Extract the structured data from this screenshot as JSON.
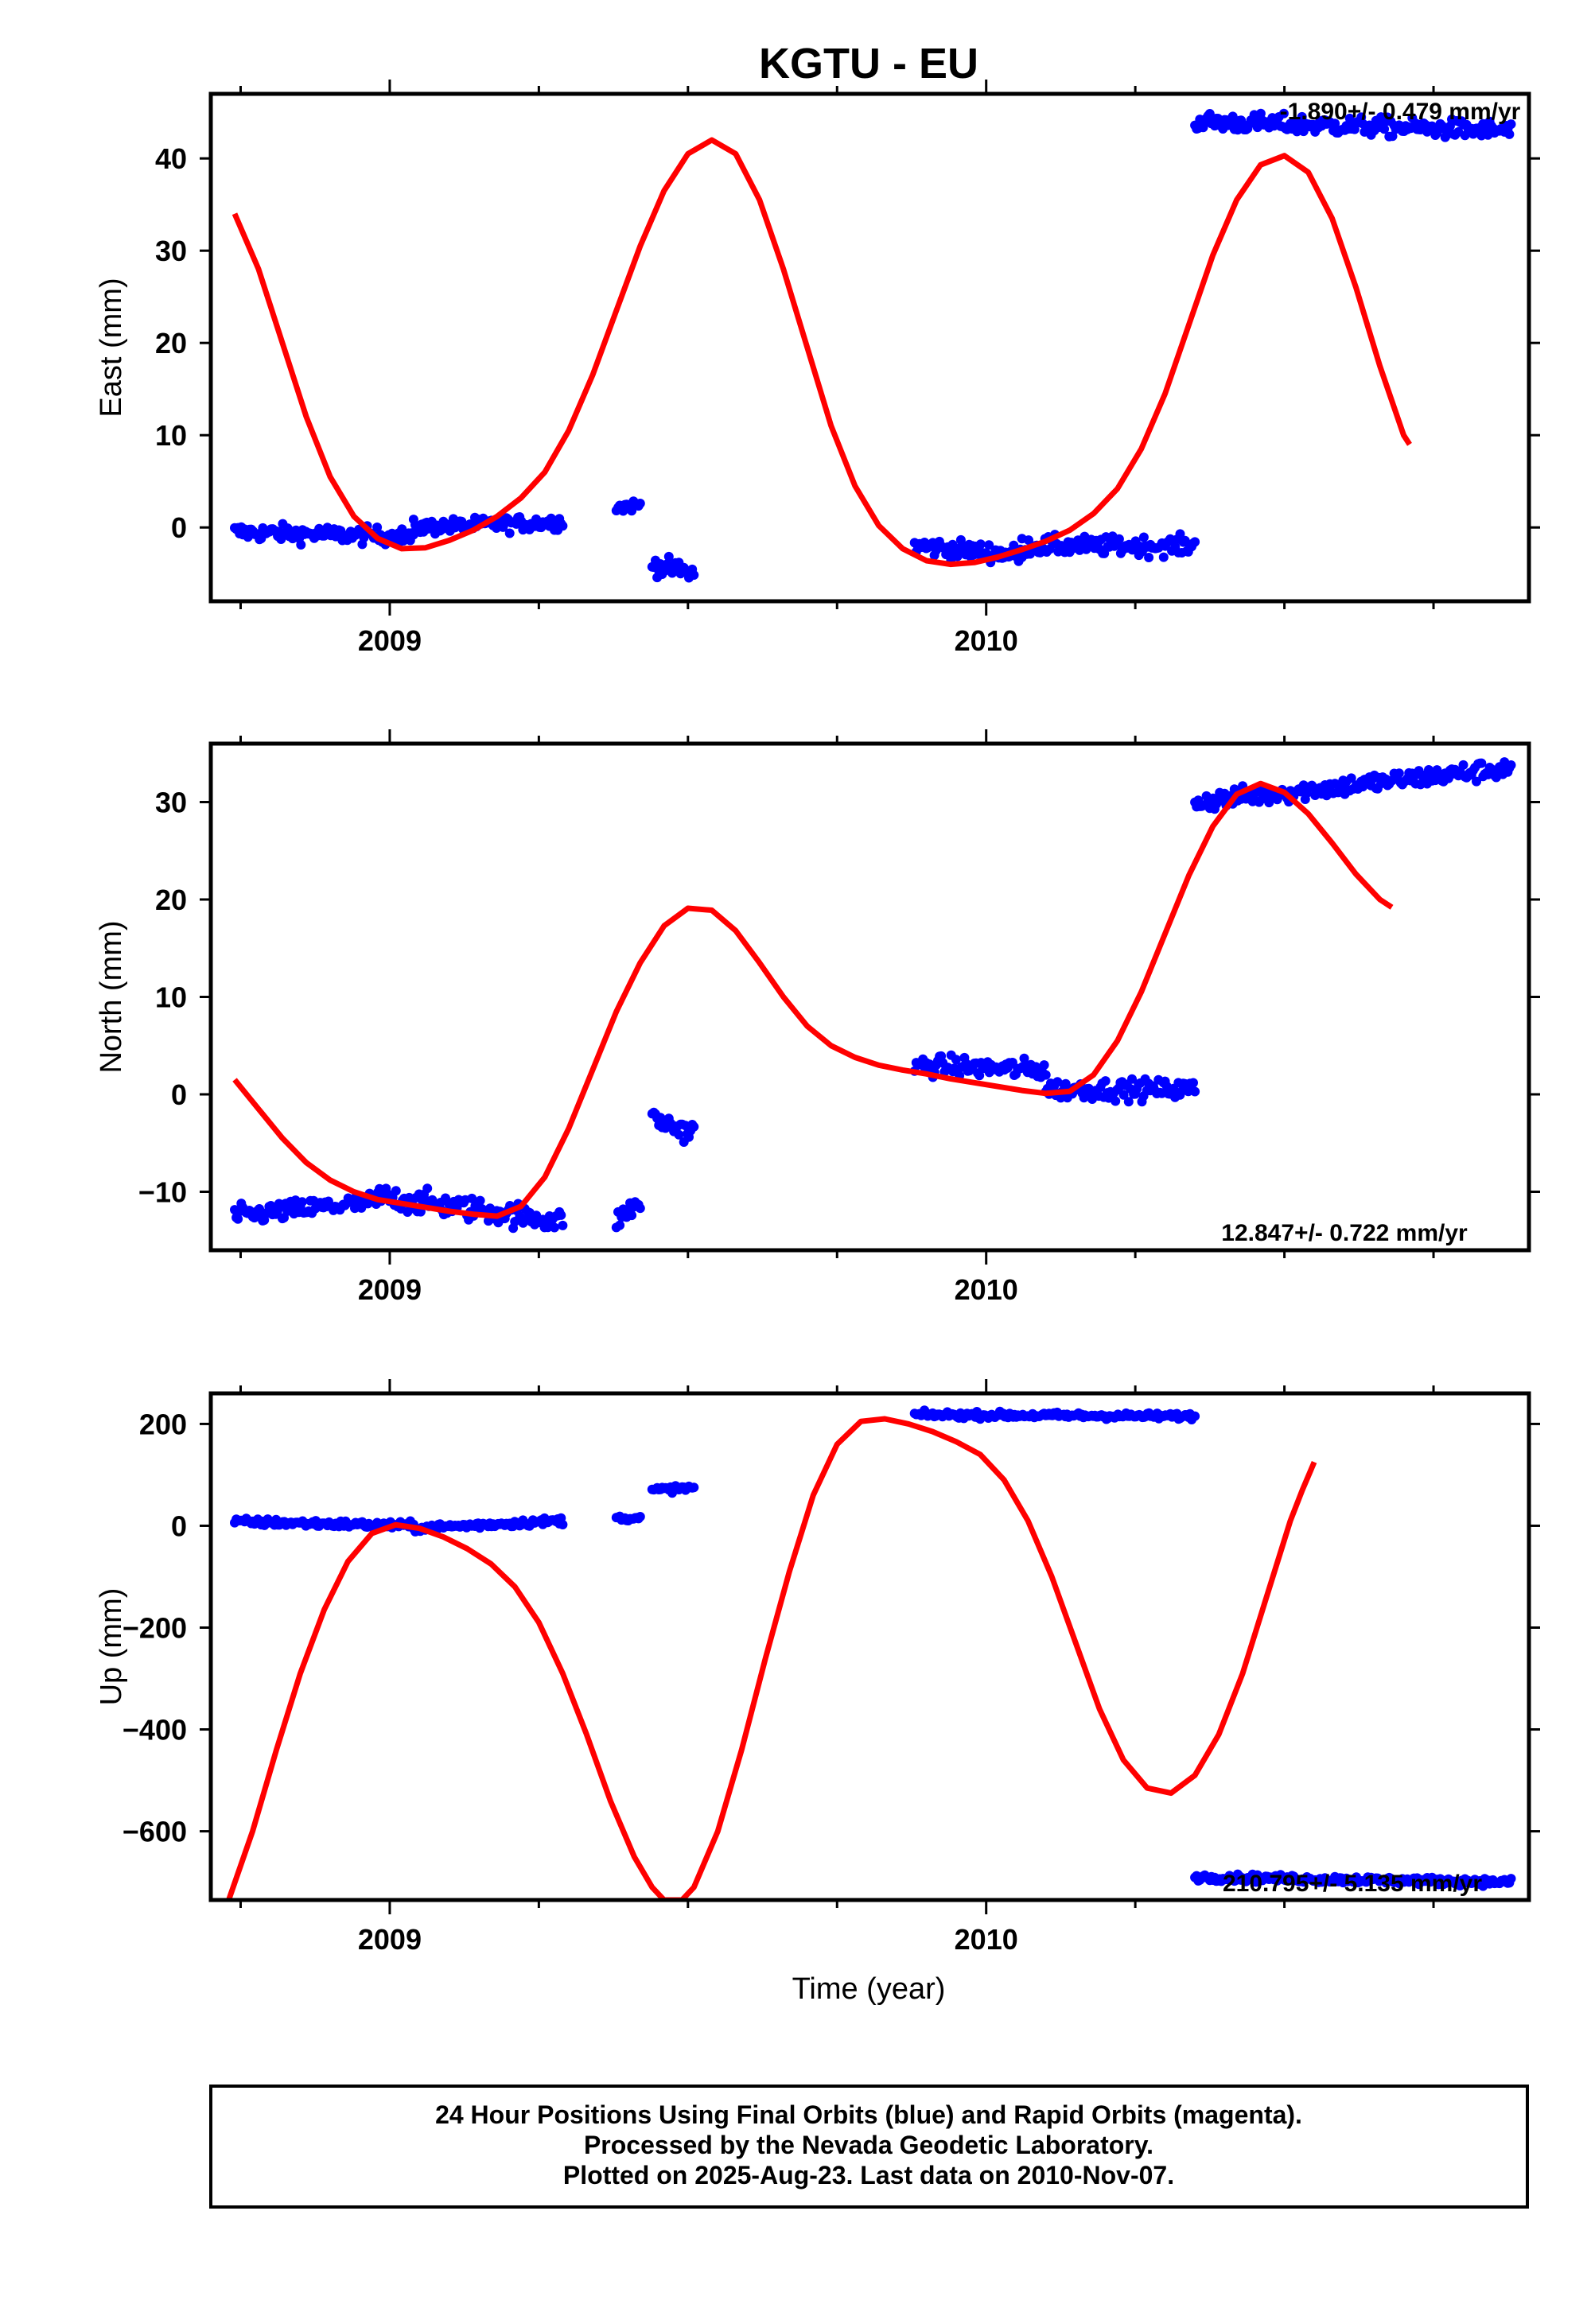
{
  "title": "KGTU - EU",
  "xlabel": "Time (year)",
  "caption": {
    "lines": [
      "24 Hour Positions Using Final Orbits (blue) and Rapid Orbits (magenta).",
      "Processed by the Nevada Geodetic Laboratory.",
      "Plotted on 2025-Aug-23. Last data on 2010-Nov-07."
    ]
  },
  "colors": {
    "data": "#0000ff",
    "fit": "#ff0000",
    "frame": "#000000"
  },
  "chart_data": [
    {
      "type": "scatter",
      "name": "east",
      "ylabel": "East (mm)",
      "rate_label": "-1.890+/- 0.479 mm/yr",
      "xlim": [
        2008.7,
        2010.91
      ],
      "ylim": [
        -8,
        47
      ],
      "xticks": [
        2009,
        2010
      ],
      "yticks": [
        0,
        10,
        20,
        30,
        40
      ],
      "ytick_labels": [
        "0",
        "10",
        "20",
        "30",
        "40"
      ],
      "data_segments": [
        {
          "x0": 2008.74,
          "x1": 2009.04,
          "y0": -0.5,
          "y1": -1.0,
          "noise": 0.9
        },
        {
          "x0": 2009.04,
          "x1": 2009.29,
          "y0": 0.0,
          "y1": 0.6,
          "noise": 0.8
        },
        {
          "x0": 2009.38,
          "x1": 2009.42,
          "y0": 2.2,
          "y1": 2.4,
          "noise": 0.6
        },
        {
          "x0": 2009.44,
          "x1": 2009.51,
          "y0": -4.0,
          "y1": -5.0,
          "noise": 1.0
        },
        {
          "x0": 2009.88,
          "x1": 2010.06,
          "y0": -2.0,
          "y1": -3.0,
          "noise": 1.0
        },
        {
          "x0": 2010.06,
          "x1": 2010.35,
          "y0": -2.0,
          "y1": -2.0,
          "noise": 1.0
        },
        {
          "x0": 2010.35,
          "x1": 2010.88,
          "y0": 44.0,
          "y1": 43.0,
          "noise": 1.0
        }
      ],
      "fit_points": [
        [
          2008.74,
          34
        ],
        [
          2008.78,
          28
        ],
        [
          2008.82,
          20
        ],
        [
          2008.86,
          12
        ],
        [
          2008.9,
          5.5
        ],
        [
          2008.94,
          1.2
        ],
        [
          2008.98,
          -1.2
        ],
        [
          2009.02,
          -2.3
        ],
        [
          2009.06,
          -2.2
        ],
        [
          2009.1,
          -1.4
        ],
        [
          2009.14,
          -0.3
        ],
        [
          2009.18,
          1.2
        ],
        [
          2009.22,
          3.2
        ],
        [
          2009.26,
          6.0
        ],
        [
          2009.3,
          10.5
        ],
        [
          2009.34,
          16.5
        ],
        [
          2009.38,
          23.5
        ],
        [
          2009.42,
          30.5
        ],
        [
          2009.46,
          36.5
        ],
        [
          2009.5,
          40.5
        ],
        [
          2009.54,
          42.0
        ],
        [
          2009.58,
          40.5
        ],
        [
          2009.62,
          35.5
        ],
        [
          2009.66,
          28.0
        ],
        [
          2009.7,
          19.5
        ],
        [
          2009.74,
          11.0
        ],
        [
          2009.78,
          4.5
        ],
        [
          2009.82,
          0.2
        ],
        [
          2009.86,
          -2.3
        ],
        [
          2009.9,
          -3.6
        ],
        [
          2009.94,
          -4.0
        ],
        [
          2009.98,
          -3.8
        ],
        [
          2010.02,
          -3.2
        ],
        [
          2010.06,
          -2.4
        ],
        [
          2010.1,
          -1.5
        ],
        [
          2010.14,
          -0.3
        ],
        [
          2010.18,
          1.5
        ],
        [
          2010.22,
          4.2
        ],
        [
          2010.26,
          8.5
        ],
        [
          2010.3,
          14.5
        ],
        [
          2010.34,
          22.0
        ],
        [
          2010.38,
          29.5
        ],
        [
          2010.42,
          35.5
        ],
        [
          2010.46,
          39.3
        ],
        [
          2010.5,
          40.3
        ],
        [
          2010.54,
          38.5
        ],
        [
          2010.58,
          33.5
        ],
        [
          2010.62,
          26.0
        ],
        [
          2010.66,
          17.5
        ],
        [
          2010.7,
          10.0
        ],
        [
          2010.71,
          9.0
        ]
      ]
    },
    {
      "type": "scatter",
      "name": "north",
      "ylabel": "North (mm)",
      "rate_label": "12.847+/- 0.722 mm/yr",
      "xlim": [
        2008.7,
        2010.91
      ],
      "ylim": [
        -16,
        36
      ],
      "xticks": [
        2009,
        2010
      ],
      "yticks": [
        -10,
        0,
        10,
        20,
        30
      ],
      "ytick_labels": [
        "−10",
        "0",
        "10",
        "20",
        "30"
      ],
      "data_segments": [
        {
          "x0": 2008.74,
          "x1": 2008.98,
          "y0": -12.5,
          "y1": -11.0,
          "noise": 1.0
        },
        {
          "x0": 2008.98,
          "x1": 2009.29,
          "y0": -10.5,
          "y1": -13.0,
          "noise": 1.2
        },
        {
          "x0": 2009.38,
          "x1": 2009.42,
          "y0": -13.0,
          "y1": -11.0,
          "noise": 1.0
        },
        {
          "x0": 2009.44,
          "x1": 2009.51,
          "y0": -2.5,
          "y1": -4.0,
          "noise": 1.2
        },
        {
          "x0": 2009.88,
          "x1": 2010.1,
          "y0": 3.0,
          "y1": 2.5,
          "noise": 1.0
        },
        {
          "x0": 2010.1,
          "x1": 2010.35,
          "y0": 0.5,
          "y1": 0.5,
          "noise": 1.0
        },
        {
          "x0": 2010.35,
          "x1": 2010.88,
          "y0": 30.0,
          "y1": 33.5,
          "noise": 1.0
        }
      ],
      "fit_points": [
        [
          2008.74,
          1.5
        ],
        [
          2008.78,
          -1.5
        ],
        [
          2008.82,
          -4.5
        ],
        [
          2008.86,
          -7.0
        ],
        [
          2008.9,
          -8.8
        ],
        [
          2008.94,
          -10.0
        ],
        [
          2008.98,
          -10.8
        ],
        [
          2009.02,
          -11.2
        ],
        [
          2009.06,
          -11.6
        ],
        [
          2009.1,
          -12.0
        ],
        [
          2009.14,
          -12.3
        ],
        [
          2009.18,
          -12.5
        ],
        [
          2009.22,
          -11.5
        ],
        [
          2009.26,
          -8.5
        ],
        [
          2009.3,
          -3.5
        ],
        [
          2009.34,
          2.5
        ],
        [
          2009.38,
          8.5
        ],
        [
          2009.42,
          13.5
        ],
        [
          2009.46,
          17.3
        ],
        [
          2009.5,
          19.1
        ],
        [
          2009.54,
          18.9
        ],
        [
          2009.58,
          16.8
        ],
        [
          2009.62,
          13.5
        ],
        [
          2009.66,
          10.0
        ],
        [
          2009.7,
          7.0
        ],
        [
          2009.74,
          5.0
        ],
        [
          2009.78,
          3.8
        ],
        [
          2009.82,
          3.0
        ],
        [
          2009.86,
          2.5
        ],
        [
          2009.9,
          2.1
        ],
        [
          2009.94,
          1.6
        ],
        [
          2009.98,
          1.2
        ],
        [
          2010.02,
          0.8
        ],
        [
          2010.06,
          0.4
        ],
        [
          2010.1,
          0.1
        ],
        [
          2010.14,
          0.3
        ],
        [
          2010.18,
          2.0
        ],
        [
          2010.22,
          5.5
        ],
        [
          2010.26,
          10.5
        ],
        [
          2010.3,
          16.5
        ],
        [
          2010.34,
          22.5
        ],
        [
          2010.38,
          27.5
        ],
        [
          2010.42,
          30.8
        ],
        [
          2010.46,
          31.9
        ],
        [
          2010.5,
          31.0
        ],
        [
          2010.54,
          28.8
        ],
        [
          2010.58,
          25.8
        ],
        [
          2010.62,
          22.6
        ],
        [
          2010.66,
          20.0
        ],
        [
          2010.68,
          19.2
        ]
      ]
    },
    {
      "type": "scatter",
      "name": "up",
      "ylabel": "Up (mm)",
      "rate_label": "210.795+/- 5.135 mm/yr",
      "xlim": [
        2008.7,
        2010.91
      ],
      "ylim": [
        -735,
        260
      ],
      "xticks": [
        2009,
        2010
      ],
      "yticks": [
        -600,
        -400,
        -200,
        0,
        200
      ],
      "ytick_labels": [
        "−600",
        "−400",
        "−200",
        "0",
        "200"
      ],
      "data_segments": [
        {
          "x0": 2008.74,
          "x1": 2009.04,
          "y0": 8,
          "y1": 0,
          "noise": 7
        },
        {
          "x0": 2009.04,
          "x1": 2009.29,
          "y0": -5,
          "y1": 10,
          "noise": 7
        },
        {
          "x0": 2009.38,
          "x1": 2009.42,
          "y0": 15,
          "y1": 15,
          "noise": 5
        },
        {
          "x0": 2009.44,
          "x1": 2009.51,
          "y0": 70,
          "y1": 75,
          "noise": 6
        },
        {
          "x0": 2009.88,
          "x1": 2010.35,
          "y0": 218,
          "y1": 215,
          "noise": 6
        },
        {
          "x0": 2010.35,
          "x1": 2010.88,
          "y0": -690,
          "y1": -700,
          "noise": 7
        }
      ],
      "fit_points": [
        [
          2008.73,
          -735
        ],
        [
          2008.77,
          -600
        ],
        [
          2008.81,
          -440
        ],
        [
          2008.85,
          -290
        ],
        [
          2008.89,
          -165
        ],
        [
          2008.93,
          -70
        ],
        [
          2008.97,
          -15
        ],
        [
          2009.01,
          2
        ],
        [
          2009.05,
          -5
        ],
        [
          2009.09,
          -22
        ],
        [
          2009.13,
          -45
        ],
        [
          2009.17,
          -75
        ],
        [
          2009.21,
          -120
        ],
        [
          2009.25,
          -190
        ],
        [
          2009.29,
          -290
        ],
        [
          2009.33,
          -410
        ],
        [
          2009.37,
          -540
        ],
        [
          2009.41,
          -650
        ],
        [
          2009.44,
          -710
        ],
        [
          2009.46,
          -735
        ],
        [
          2009.49,
          -735
        ],
        [
          2009.51,
          -710
        ],
        [
          2009.55,
          -600
        ],
        [
          2009.59,
          -440
        ],
        [
          2009.63,
          -260
        ],
        [
          2009.67,
          -90
        ],
        [
          2009.71,
          60
        ],
        [
          2009.75,
          160
        ],
        [
          2009.79,
          205
        ],
        [
          2009.83,
          210
        ],
        [
          2009.87,
          200
        ],
        [
          2009.91,
          185
        ],
        [
          2009.95,
          165
        ],
        [
          2009.99,
          140
        ],
        [
          2010.03,
          90
        ],
        [
          2010.07,
          10
        ],
        [
          2010.11,
          -100
        ],
        [
          2010.15,
          -230
        ],
        [
          2010.19,
          -360
        ],
        [
          2010.23,
          -460
        ],
        [
          2010.27,
          -515
        ],
        [
          2010.31,
          -525
        ],
        [
          2010.35,
          -490
        ],
        [
          2010.39,
          -410
        ],
        [
          2010.43,
          -290
        ],
        [
          2010.47,
          -140
        ],
        [
          2010.51,
          10
        ],
        [
          2010.53,
          70
        ],
        [
          2010.55,
          125
        ]
      ]
    }
  ]
}
